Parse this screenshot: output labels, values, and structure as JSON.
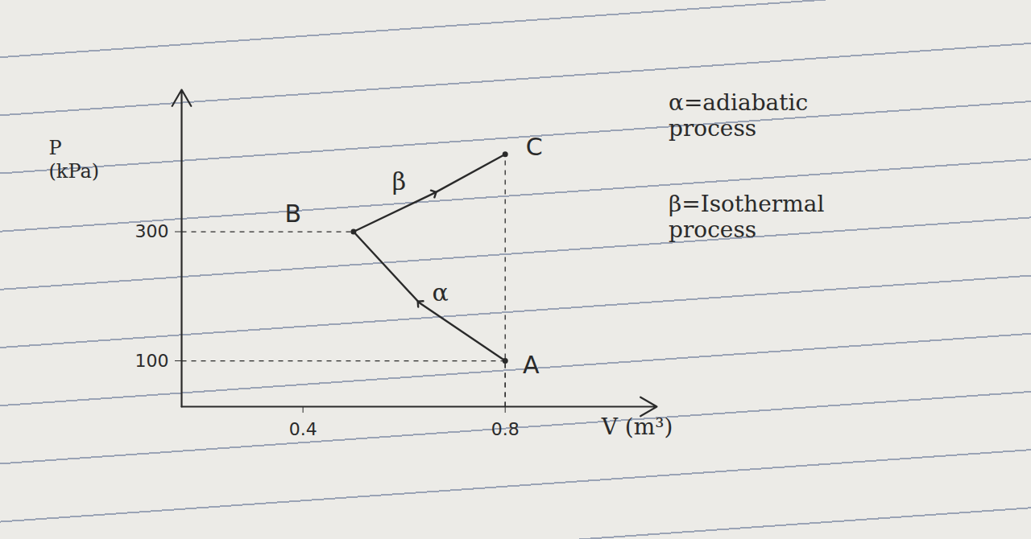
{
  "chart_data": {
    "type": "line",
    "x_label": "V (m³)",
    "y_label": "P\n(kPa)",
    "xlim": [
      0.16,
      1.1
    ],
    "ylim": [
      29,
      520
    ],
    "xticks": [
      0.4,
      0.8
    ],
    "yticks": [
      100,
      300
    ],
    "grid": false,
    "series": [
      {
        "name": "α",
        "color": "#2a2a2a",
        "marker": "arrow",
        "x": [
          0.8,
          0.63,
          0.5
        ],
        "values": [
          100,
          190,
          300
        ]
      },
      {
        "name": "β",
        "color": "#2a2a2a",
        "marker": "arrow",
        "x": [
          0.5,
          0.66,
          0.8
        ],
        "values": [
          300,
          360,
          420
        ]
      }
    ],
    "points": [
      {
        "label": "A",
        "x": 0.8,
        "y": 100
      },
      {
        "label": "B",
        "x": 0.5,
        "y": 300
      },
      {
        "label": "C",
        "x": 0.8,
        "y": 420
      }
    ],
    "annotations": [
      "α=adiabatic process",
      "β=Isothermal process"
    ]
  }
}
